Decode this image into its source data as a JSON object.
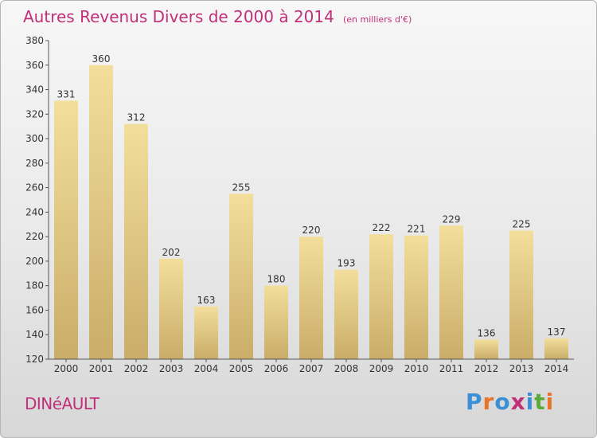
{
  "header": {
    "title": "Autres Revenus Divers de 2000 à 2014",
    "unit": "(en milliers d'€)"
  },
  "footer": {
    "commune": "DINéAULT",
    "logo": "Proxiti"
  },
  "colors": {
    "title": "#c0307a",
    "bar_light": "#f3de9c",
    "bar_dark": "#c9ad68",
    "logo_letters": [
      "#3a8fd6",
      "#e8742a",
      "#3a8fd6",
      "#c0307a",
      "#3a8fd6",
      "#5caa3c",
      "#e8742a"
    ]
  },
  "chart_data": {
    "type": "bar",
    "title": "Autres Revenus Divers de 2000 à 2014",
    "ylabel": "",
    "xlabel": "",
    "categories": [
      "2000",
      "2001",
      "2002",
      "2003",
      "2004",
      "2005",
      "2006",
      "2007",
      "2008",
      "2009",
      "2010",
      "2011",
      "2012",
      "2013",
      "2014"
    ],
    "values": [
      331,
      360,
      312,
      202,
      163,
      255,
      180,
      220,
      193,
      222,
      221,
      229,
      136,
      225,
      137
    ],
    "ylim": [
      120,
      380
    ],
    "yticks": [
      120,
      140,
      160,
      180,
      200,
      220,
      240,
      260,
      280,
      300,
      320,
      340,
      360,
      380
    ],
    "grid": false,
    "legend": "none"
  }
}
